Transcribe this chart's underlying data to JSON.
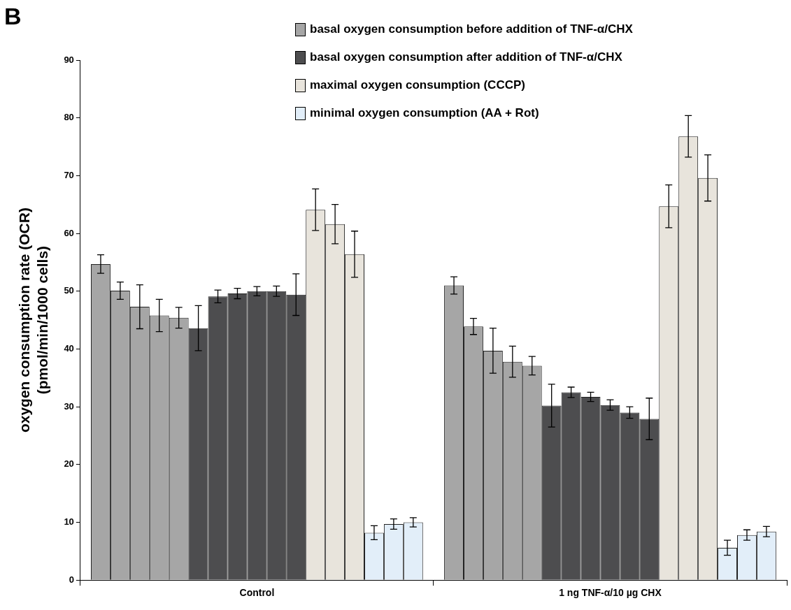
{
  "chart_data": {
    "type": "bar",
    "ylabel": "oxygen consumption rate (OCR)\n(pmol/min/1000 cells)",
    "annotations": [
      "B"
    ],
    "categories": [
      "Control",
      "1 ng TNF-α/10 µg CHX"
    ],
    "ylim": [
      0,
      90
    ],
    "yticks": [
      0,
      10,
      20,
      30,
      40,
      50,
      60,
      70,
      80,
      90
    ],
    "grid": false,
    "legend": "top right",
    "series": [
      {
        "name": "basal oxygen consumption before addition of TNF-α/CHX",
        "color": "#a6a6a6",
        "values": [
          54.7,
          51.0
        ],
        "errors": [
          1.6,
          1.5
        ]
      },
      {
        "color": "#a6a6a6",
        "values": [
          50.1,
          43.9
        ],
        "errors": [
          1.5,
          1.4
        ]
      },
      {
        "color": "#a6a6a6",
        "values": [
          47.3,
          39.7
        ],
        "errors": [
          3.8,
          3.9
        ]
      },
      {
        "color": "#a6a6a6",
        "values": [
          45.8,
          37.8
        ],
        "errors": [
          2.8,
          2.7
        ]
      },
      {
        "color": "#a6a6a6",
        "values": [
          45.4,
          37.1
        ],
        "errors": [
          1.8,
          1.6
        ]
      },
      {
        "name": "basal oxygen consumption after addition of TNF-α/CHX",
        "color": "#4d4d4f",
        "values": [
          43.6,
          30.2
        ],
        "errors": [
          3.9,
          3.7
        ]
      },
      {
        "color": "#4d4d4f",
        "values": [
          49.1,
          32.5
        ],
        "errors": [
          1.1,
          0.9
        ]
      },
      {
        "color": "#4d4d4f",
        "values": [
          49.6,
          31.7
        ],
        "errors": [
          0.9,
          0.8
        ]
      },
      {
        "color": "#4d4d4f",
        "values": [
          50.0,
          30.3
        ],
        "errors": [
          0.8,
          0.9
        ]
      },
      {
        "color": "#4d4d4f",
        "values": [
          50.0,
          29.0
        ],
        "errors": [
          0.9,
          1.0
        ]
      },
      {
        "color": "#4d4d4f",
        "values": [
          49.4,
          27.9
        ],
        "errors": [
          3.6,
          3.6
        ]
      },
      {
        "name": "maximal oxygen consumption (CCCP)",
        "color": "#e8e4dc",
        "values": [
          64.1,
          64.7
        ],
        "errors": [
          3.6,
          3.7
        ]
      },
      {
        "color": "#e8e4dc",
        "values": [
          61.6,
          76.8
        ],
        "errors": [
          3.4,
          3.6
        ]
      },
      {
        "color": "#e8e4dc",
        "values": [
          56.4,
          69.6
        ],
        "errors": [
          4.0,
          4.0
        ]
      },
      {
        "name": "minimal oxygen consumption (AA + Rot)",
        "color": "#e2eef9",
        "values": [
          8.2,
          5.6
        ],
        "errors": [
          1.2,
          1.3
        ]
      },
      {
        "color": "#e2eef9",
        "values": [
          9.7,
          7.8
        ],
        "errors": [
          0.9,
          0.9
        ]
      },
      {
        "color": "#e2eef9",
        "values": [
          10.0,
          8.4
        ],
        "errors": [
          0.8,
          0.9
        ]
      }
    ]
  }
}
